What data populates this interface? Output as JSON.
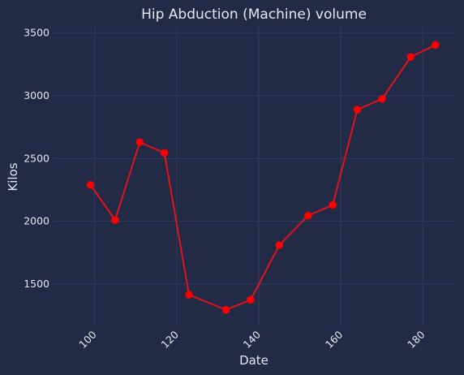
{
  "chart_data": {
    "type": "line",
    "title": "Hip Abduction (Machine) volume",
    "xlabel": "Date",
    "ylabel": "Kilos",
    "x": [
      99,
      105,
      111,
      117,
      123,
      132,
      138,
      145,
      152,
      158,
      164,
      170,
      177,
      183
    ],
    "series": [
      {
        "values": [
          2290,
          2010,
          2630,
          2545,
          1415,
          1295,
          1375,
          1810,
          2045,
          2130,
          2890,
          2975,
          3310,
          3405
        ]
      }
    ],
    "xlim": [
      90,
      188
    ],
    "ylim": [
      1170,
      3550
    ],
    "x_ticks": [
      100,
      120,
      140,
      160,
      180
    ],
    "y_ticks": [
      1500,
      2000,
      2500,
      3000,
      3500
    ],
    "grid": true,
    "legend": "none",
    "colors": {
      "background": "#222a45",
      "line": "#e3131c",
      "marker": "#ff0000",
      "grid": "#2f3b63",
      "text": "#e6e8f0"
    }
  }
}
